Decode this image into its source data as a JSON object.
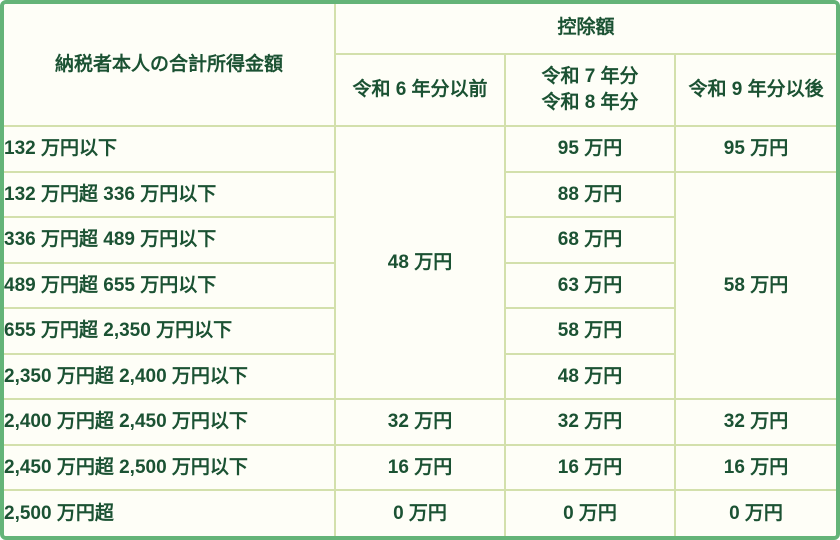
{
  "colors": {
    "outer_border": "#64b478",
    "header_background": "#e4edcc",
    "cell_background": "#fefef7",
    "grid_line": "#d3e0ac",
    "text": "#1b5233"
  },
  "table": {
    "header": {
      "income_label": "納税者本人の合計所得金額",
      "deduction_label": "控除額",
      "col_r6": "令和 6 年分以前",
      "col_r7_line1": "令和 7 年分",
      "col_r7_line2": "令和 8 年分",
      "col_r9": "令和 9 年分以後"
    },
    "rows": [
      {
        "label": "132 万円以下",
        "r6": "48 万円",
        "r7": "95 万円",
        "r9": "95 万円"
      },
      {
        "label": "132 万円超 336 万円以下",
        "r6": "48 万円",
        "r7": "88 万円",
        "r9": "58 万円"
      },
      {
        "label": "336 万円超 489 万円以下",
        "r6": "48 万円",
        "r7": "68 万円",
        "r9": "58 万円"
      },
      {
        "label": "489 万円超 655 万円以下",
        "r6": "48 万円",
        "r7": "63 万円",
        "r9": "58 万円"
      },
      {
        "label": "655 万円超 2,350 万円以下",
        "r6": "48 万円",
        "r7": "58 万円",
        "r9": "58 万円"
      },
      {
        "label": "2,350 万円超 2,400 万円以下",
        "r6": "48 万円",
        "r7": "48 万円",
        "r9": "58 万円"
      },
      {
        "label": "2,400 万円超 2,450 万円以下",
        "r6": "32 万円",
        "r7": "32 万円",
        "r9": "32 万円"
      },
      {
        "label": "2,450 万円超 2,500 万円以下",
        "r6": "16 万円",
        "r7": "16 万円",
        "r9": "16 万円"
      },
      {
        "label": "2,500 万円超",
        "r6": "0 万円",
        "r7": "0 万円",
        "r9": "0 万円"
      }
    ],
    "merges": {
      "r6_rows_1_to_6_value": "48 万円",
      "r9_rows_2_to_6_value": "58 万円"
    }
  }
}
